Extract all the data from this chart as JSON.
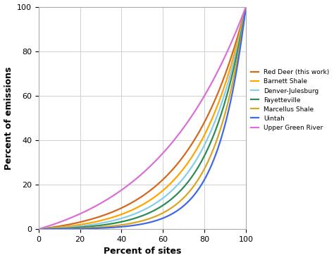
{
  "title": "",
  "xlabel": "Percent of sites",
  "ylabel": "Percent of emissions",
  "xlim": [
    0,
    100
  ],
  "ylim": [
    0,
    100
  ],
  "xticks": [
    0,
    20,
    40,
    60,
    80,
    100
  ],
  "yticks": [
    0,
    20,
    40,
    60,
    80,
    100
  ],
  "series": [
    {
      "label": "Red Deer (this work)",
      "color": "#D2691E",
      "alpha": 3.5
    },
    {
      "label": "Barnett Shale",
      "color": "#FFA500",
      "alpha": 4.2
    },
    {
      "label": "Denver-Julesburg",
      "color": "#87CEEB",
      "alpha": 4.8
    },
    {
      "label": "Fayetteville",
      "color": "#2E8B57",
      "alpha": 5.5
    },
    {
      "label": "Marcellus Shale",
      "color": "#DAA520",
      "alpha": 6.5
    },
    {
      "label": "Uintah",
      "color": "#4169E1",
      "alpha": 7.5
    },
    {
      "label": "Upper Green River",
      "color": "#DA70D6",
      "alpha": 2.2
    }
  ],
  "background_color": "#ffffff",
  "grid_color": "#d0d0d0",
  "legend_fontsize": 6.5,
  "axis_fontsize": 9,
  "tick_fontsize": 8,
  "line_width": 1.6
}
